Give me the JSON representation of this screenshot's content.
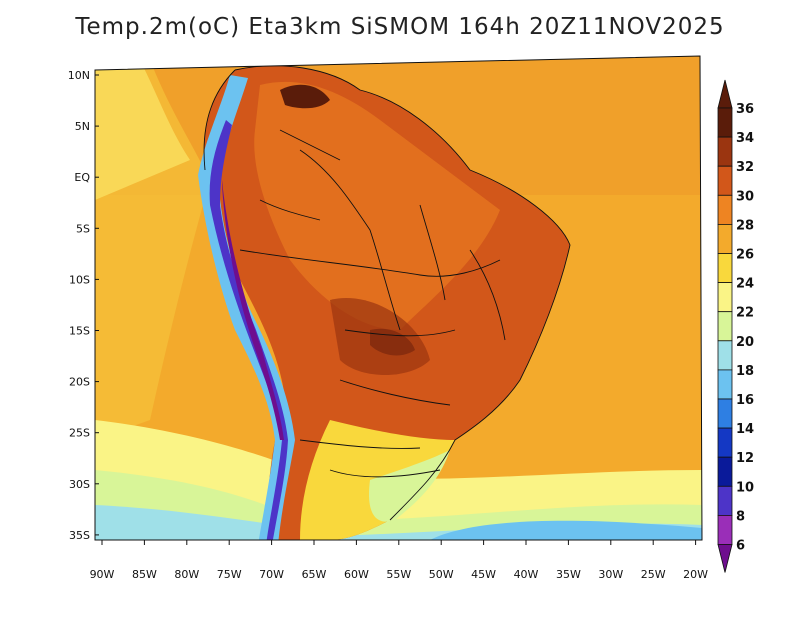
{
  "title": "Temp.2m(oC) Eta3km SiSMOM 164h 20Z11NOV2025",
  "map": {
    "variable": "2 m temperature",
    "units": "°C",
    "lat_labels": [
      "10N",
      "5N",
      "EQ",
      "5S",
      "10S",
      "15S",
      "20S",
      "25S",
      "30S",
      "35S"
    ],
    "lon_labels": [
      "90W",
      "85W",
      "80W",
      "75W",
      "70W",
      "65W",
      "60W",
      "55W",
      "50W",
      "45W",
      "40W",
      "35W",
      "30W",
      "25W",
      "20W"
    ]
  },
  "colorbar": {
    "labels": [
      "36",
      "34",
      "32",
      "30",
      "28",
      "26",
      "24",
      "22",
      "20",
      "18",
      "16",
      "14",
      "12",
      "10",
      "8",
      "6"
    ],
    "colors": [
      "#5a1c0a",
      "#9b3510",
      "#d2571a",
      "#ee8422",
      "#f3aa2c",
      "#f9d83c",
      "#faf486",
      "#d8f598",
      "#9fe0e8",
      "#6cc2f0",
      "#2e7fe3",
      "#1438c4",
      "#0a1a9a",
      "#4d34c8",
      "#9a2eb8",
      "#6e0e8e"
    ]
  }
}
